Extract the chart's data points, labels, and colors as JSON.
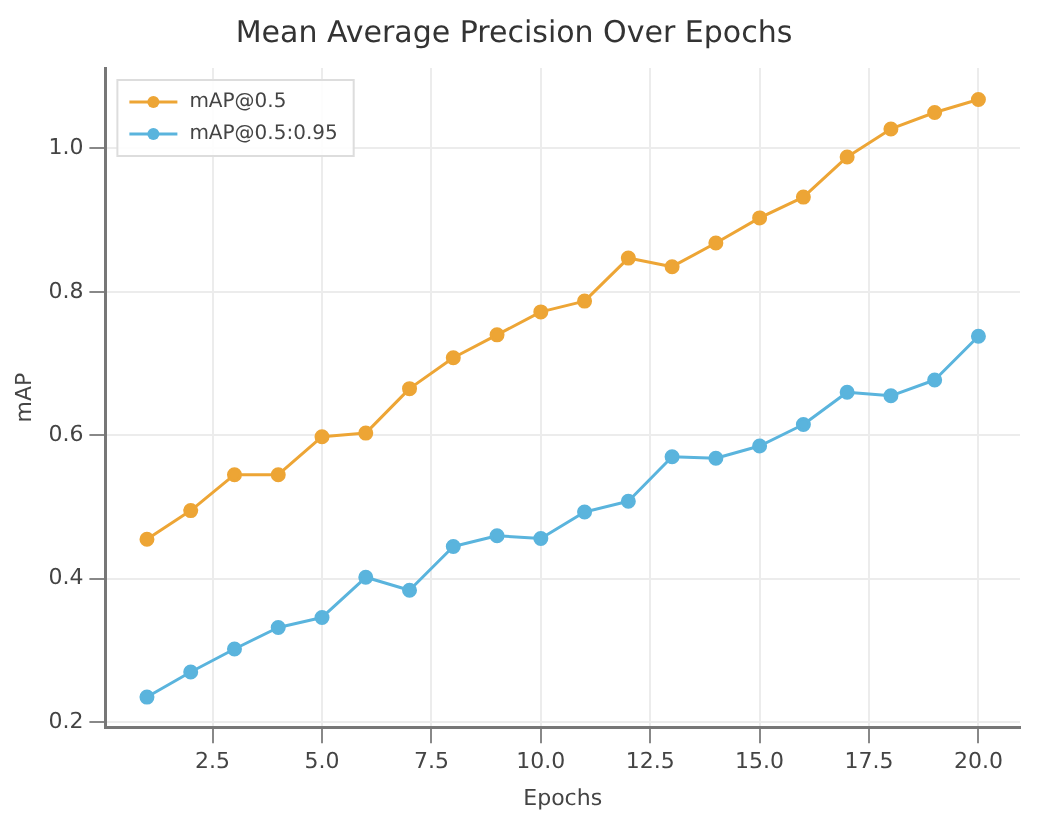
{
  "chart_data": {
    "type": "line",
    "title": "Mean Average Precision Over Epochs",
    "xlabel": "Epochs",
    "ylabel": "mAP",
    "x": [
      1,
      2,
      3,
      4,
      5,
      6,
      7,
      8,
      9,
      10,
      11,
      12,
      13,
      14,
      15,
      16,
      17,
      18,
      19,
      20
    ],
    "series": [
      {
        "name": "mAP@0.5",
        "color": "#eda535",
        "values": [
          0.455,
          0.495,
          0.545,
          0.545,
          0.598,
          0.603,
          0.665,
          0.708,
          0.74,
          0.772,
          0.787,
          0.847,
          0.835,
          0.868,
          0.903,
          0.932,
          0.988,
          1.027,
          1.05,
          1.068
        ]
      },
      {
        "name": "mAP@0.5:0.95",
        "color": "#5ab4dd",
        "values": [
          0.235,
          0.27,
          0.302,
          0.332,
          0.346,
          0.402,
          0.384,
          0.445,
          0.46,
          0.456,
          0.493,
          0.508,
          0.57,
          0.568,
          0.585,
          0.615,
          0.66,
          0.655,
          0.677,
          0.738
        ]
      }
    ],
    "xlim": [
      0.05,
      20.95
    ],
    "xticks": [
      {
        "value": 2.5,
        "label": "2.5"
      },
      {
        "value": 5,
        "label": "5.0"
      },
      {
        "value": 7.5,
        "label": "7.5"
      },
      {
        "value": 10,
        "label": "10.0"
      },
      {
        "value": 12.5,
        "label": "12.5"
      },
      {
        "value": 15,
        "label": "15.0"
      },
      {
        "value": 17.5,
        "label": "17.5"
      },
      {
        "value": 20,
        "label": "20.0"
      }
    ],
    "ylim": [
      0.193,
      1.112
    ],
    "yticks": [
      {
        "value": 0.2,
        "label": "0.2"
      },
      {
        "value": 0.4,
        "label": "0.4"
      },
      {
        "value": 0.6,
        "label": "0.6"
      },
      {
        "value": 0.8,
        "label": "0.8"
      },
      {
        "value": 1.0,
        "label": "1.0"
      }
    ],
    "grid": true,
    "legend": "top left",
    "marker": "circle",
    "line_style": "solid"
  }
}
